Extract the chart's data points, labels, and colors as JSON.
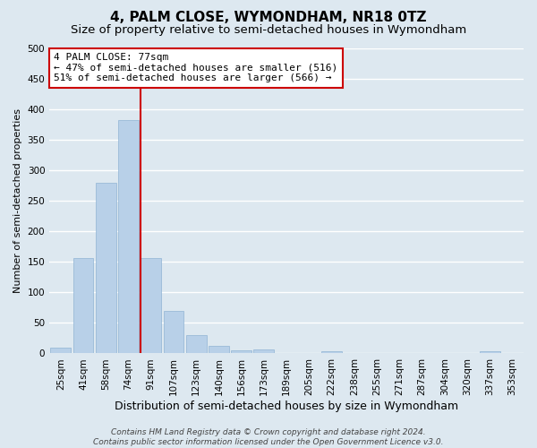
{
  "title": "4, PALM CLOSE, WYMONDHAM, NR18 0TZ",
  "subtitle": "Size of property relative to semi-detached houses in Wymondham",
  "xlabel": "Distribution of semi-detached houses by size in Wymondham",
  "ylabel": "Number of semi-detached properties",
  "footnote1": "Contains HM Land Registry data © Crown copyright and database right 2024.",
  "footnote2": "Contains public sector information licensed under the Open Government Licence v3.0.",
  "bar_labels": [
    "25sqm",
    "41sqm",
    "58sqm",
    "74sqm",
    "91sqm",
    "107sqm",
    "123sqm",
    "140sqm",
    "156sqm",
    "173sqm",
    "189sqm",
    "205sqm",
    "222sqm",
    "238sqm",
    "255sqm",
    "271sqm",
    "287sqm",
    "304sqm",
    "320sqm",
    "337sqm",
    "353sqm"
  ],
  "bar_values": [
    10,
    157,
    280,
    383,
    157,
    70,
    30,
    13,
    5,
    6,
    0,
    0,
    4,
    0,
    0,
    0,
    0,
    0,
    0,
    3,
    0
  ],
  "bar_color": "#b8d0e8",
  "bar_edge_color": "#90b4d4",
  "ylim": [
    0,
    500
  ],
  "yticks": [
    0,
    50,
    100,
    150,
    200,
    250,
    300,
    350,
    400,
    450,
    500
  ],
  "vline_index": 4,
  "vline_color": "#cc0000",
  "annotation_title": "4 PALM CLOSE: 77sqm",
  "annotation_line1": "← 47% of semi-detached houses are smaller (516)",
  "annotation_line2": "51% of semi-detached houses are larger (566) →",
  "annotation_box_color": "#ffffff",
  "annotation_box_edge_color": "#cc0000",
  "background_color": "#dde8f0",
  "plot_bg_color": "#dde8f0",
  "grid_color": "#ffffff",
  "title_fontsize": 11,
  "subtitle_fontsize": 9.5,
  "xlabel_fontsize": 9,
  "ylabel_fontsize": 8,
  "tick_fontsize": 7.5,
  "annotation_fontsize": 8,
  "footnote_fontsize": 6.5
}
